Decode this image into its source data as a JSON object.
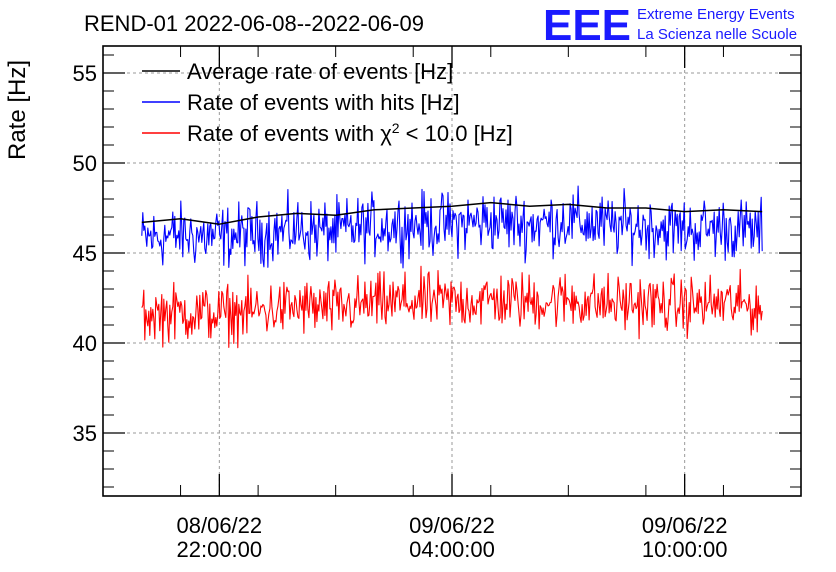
{
  "header": {
    "title": "REND-01 2022-06-08--2022-06-09",
    "logo_mark": "EEE",
    "logo_line1": "Extreme Energy Events",
    "logo_line2": "La Scienza nelle Scuole",
    "logo_color": "#1a1aff"
  },
  "chart_data": {
    "type": "line",
    "ylabel": "Rate [Hz]",
    "xlabel": "",
    "ylim": [
      31.5,
      56.5
    ],
    "yticks": [
      35,
      40,
      45,
      50,
      55
    ],
    "xlim": [
      "2022-06-08 19:00:00",
      "2022-06-09 13:00:00"
    ],
    "xticks": [
      {
        "value": "2022-06-08 22:00:00",
        "date": "08/06/22",
        "time": "22:00:00"
      },
      {
        "value": "2022-06-09 04:00:00",
        "date": "09/06/22",
        "time": "04:00:00"
      },
      {
        "value": "2022-06-09 10:00:00",
        "date": "09/06/22",
        "time": "10:00:00"
      }
    ],
    "grid": true,
    "legend_position": "top-left",
    "series": [
      {
        "name": "Average rate of events [Hz]",
        "color": "#000000",
        "x": [
          "2022-06-08 20:00",
          "2022-06-08 21:00",
          "2022-06-08 22:00",
          "2022-06-08 23:00",
          "2022-06-09 00:00",
          "2022-06-09 01:00",
          "2022-06-09 02:00",
          "2022-06-09 03:00",
          "2022-06-09 04:00",
          "2022-06-09 05:00",
          "2022-06-09 06:00",
          "2022-06-09 07:00",
          "2022-06-09 08:00",
          "2022-06-09 09:00",
          "2022-06-09 10:00",
          "2022-06-09 11:00",
          "2022-06-09 12:00"
        ],
        "values": [
          46.7,
          46.9,
          46.6,
          47.0,
          47.2,
          47.1,
          47.4,
          47.5,
          47.6,
          47.8,
          47.6,
          47.7,
          47.5,
          47.5,
          47.3,
          47.4,
          47.3
        ]
      },
      {
        "name": "Rate of events with hits [Hz]",
        "color": "#0000ff",
        "x": [
          "2022-06-08 20:00",
          "2022-06-08 21:00",
          "2022-06-08 22:00",
          "2022-06-08 23:00",
          "2022-06-09 00:00",
          "2022-06-09 01:00",
          "2022-06-09 02:00",
          "2022-06-09 03:00",
          "2022-06-09 04:00",
          "2022-06-09 05:00",
          "2022-06-09 06:00",
          "2022-06-09 07:00",
          "2022-06-09 08:00",
          "2022-06-09 09:00",
          "2022-06-09 10:00",
          "2022-06-09 11:00",
          "2022-06-09 12:00"
        ],
        "values": [
          45.8,
          46.0,
          45.9,
          46.1,
          46.3,
          46.2,
          46.5,
          46.6,
          46.6,
          46.8,
          46.6,
          46.8,
          46.5,
          46.5,
          46.3,
          46.4,
          46.2
        ],
        "spread": 1.3
      },
      {
        "name": "Rate of events with χ² < 10.0 [Hz]",
        "label_main": "Rate of events with χ",
        "label_sup": "2",
        "label_tail": " < 10.0 [Hz]",
        "color": "#ff0000",
        "x": [
          "2022-06-08 20:00",
          "2022-06-08 21:00",
          "2022-06-08 22:00",
          "2022-06-08 23:00",
          "2022-06-09 00:00",
          "2022-06-09 01:00",
          "2022-06-09 02:00",
          "2022-06-09 03:00",
          "2022-06-09 04:00",
          "2022-06-09 05:00",
          "2022-06-09 06:00",
          "2022-06-09 07:00",
          "2022-06-09 08:00",
          "2022-06-09 09:00",
          "2022-06-09 10:00",
          "2022-06-09 11:00",
          "2022-06-09 12:00"
        ],
        "values": [
          41.6,
          41.7,
          41.6,
          41.8,
          42.0,
          41.9,
          42.2,
          42.3,
          42.3,
          42.4,
          42.3,
          42.4,
          42.2,
          42.2,
          42.1,
          42.2,
          42.0
        ],
        "spread": 1.2
      }
    ]
  }
}
